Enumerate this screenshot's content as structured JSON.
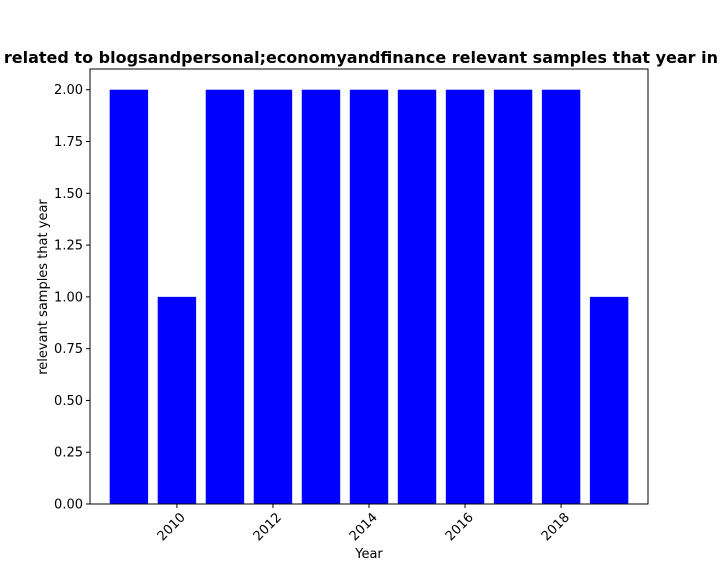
{
  "chart_data": {
    "type": "bar",
    "title": "s related to blogsandpersonal;economyandfinance relevant samples that year in t",
    "xlabel": "Year",
    "ylabel": "relevant samples that year",
    "categories": [
      2009,
      2010,
      2011,
      2012,
      2013,
      2014,
      2015,
      2016,
      2017,
      2018,
      2019
    ],
    "values": [
      2,
      1,
      2,
      2,
      2,
      2,
      2,
      2,
      2,
      2,
      1
    ],
    "xlim": [
      2008.19,
      2019.81
    ],
    "ylim": [
      0,
      2.1
    ],
    "xticks": [
      "2010",
      "2012",
      "2014",
      "2016",
      "2018"
    ],
    "yticks": [
      "0.00",
      "0.25",
      "0.50",
      "0.75",
      "1.00",
      "1.25",
      "1.50",
      "1.75",
      "2.00"
    ],
    "bar_color": "#0000ff",
    "grid": false,
    "legend": "none"
  }
}
